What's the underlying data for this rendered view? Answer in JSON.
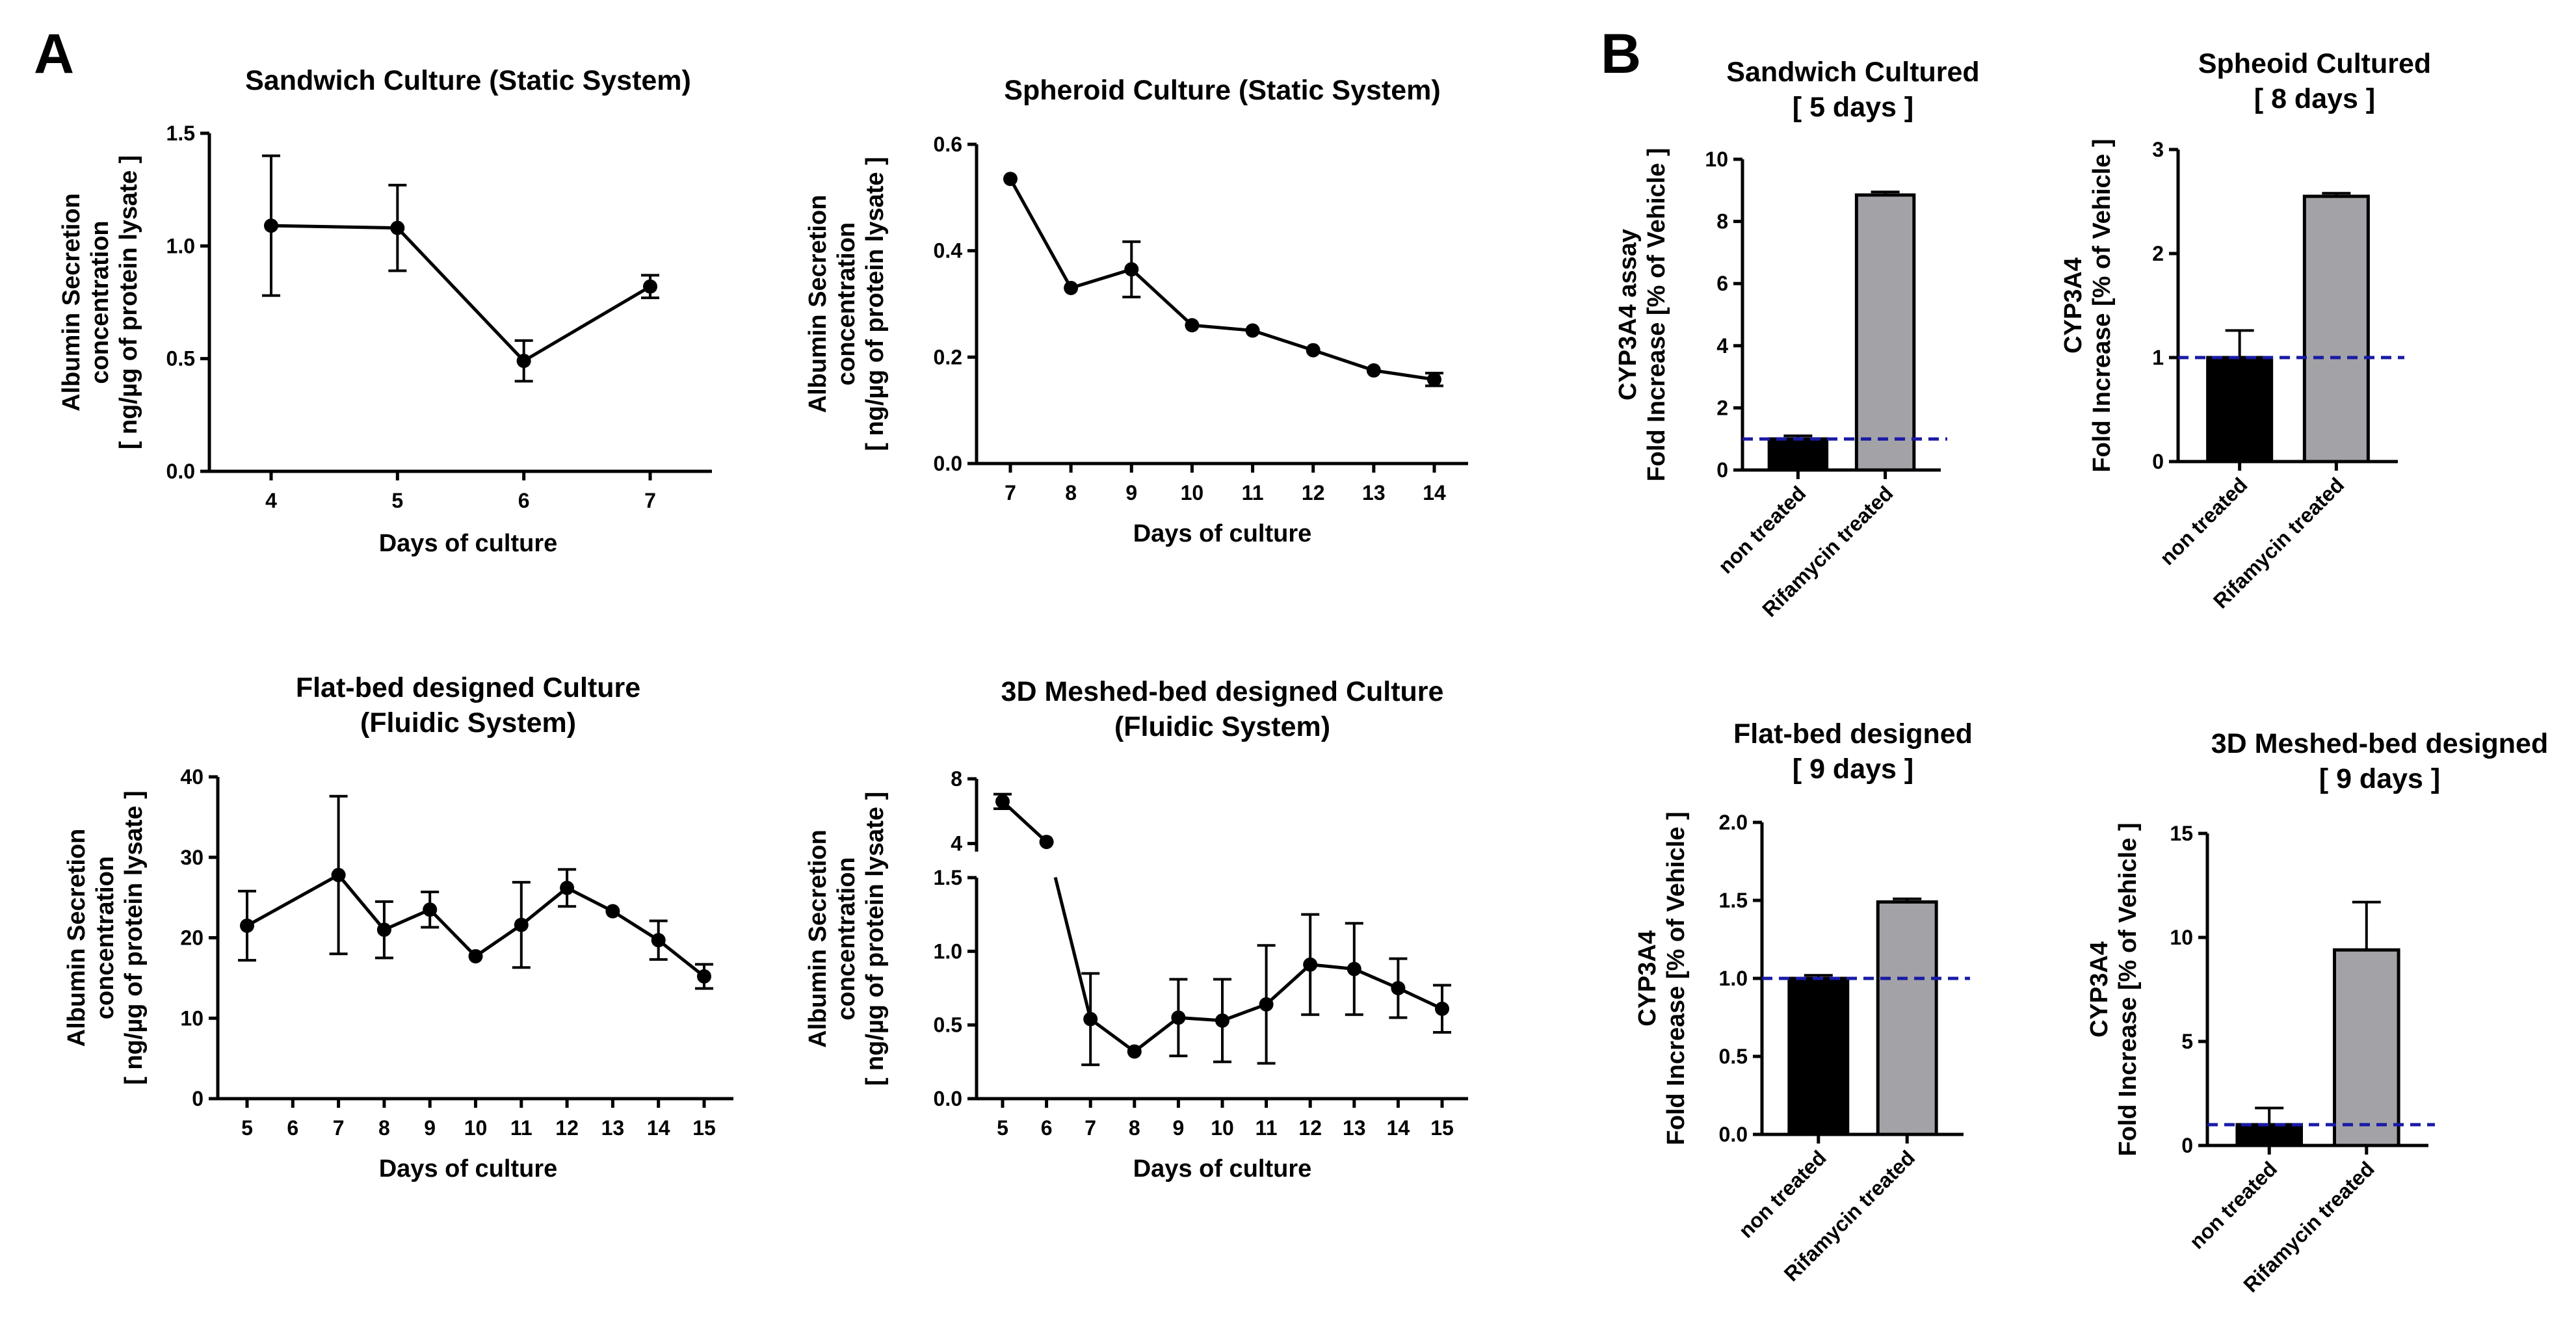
{
  "panels": {
    "A": "A",
    "B": "B"
  },
  "chart_data": [
    {
      "id": "a1",
      "type": "line",
      "title": [
        "Sandwich Culture (Static System)"
      ],
      "xlabel": "Days of culture",
      "ylabel": [
        "Albumin Secretion",
        "concentration",
        "[ ng/µg of protein lysate ]"
      ],
      "x": [
        4,
        5,
        6,
        7
      ],
      "y": [
        1.09,
        1.08,
        0.49,
        0.82
      ],
      "err": [
        0.31,
        0.19,
        0.09,
        0.05
      ],
      "xticks": [
        "4",
        "5",
        "6",
        "7"
      ],
      "yticks": [
        0.0,
        0.5,
        1.0,
        1.5
      ],
      "ytick_labels": [
        "0.0",
        "0.5",
        "1.0",
        "1.5"
      ],
      "ylim": [
        0,
        1.5
      ]
    },
    {
      "id": "a2",
      "type": "line",
      "title": [
        "Spheroid Culture (Static System)"
      ],
      "xlabel": "Days of culture",
      "ylabel": [
        "Albumin Secretion",
        "concentration",
        "[ ng/µg of protein lysate ]"
      ],
      "x": [
        7,
        8,
        9,
        10,
        11,
        12,
        13,
        14
      ],
      "y": [
        0.535,
        0.33,
        0.365,
        0.26,
        0.25,
        0.213,
        0.175,
        0.158
      ],
      "err": [
        0.0,
        0.0,
        0.052,
        0.0,
        0.0,
        0.0,
        0.0,
        0.012
      ],
      "xticks": [
        "7",
        "8",
        "9",
        "10",
        "11",
        "12",
        "13",
        "14"
      ],
      "yticks": [
        0.0,
        0.2,
        0.4,
        0.6
      ],
      "ytick_labels": [
        "0.0",
        "0.2",
        "0.4",
        "0.6"
      ],
      "ylim": [
        0,
        0.6
      ]
    },
    {
      "id": "a3",
      "type": "line",
      "title": [
        "Flat-bed designed Culture",
        "(Fluidic System)"
      ],
      "xlabel": "Days of culture",
      "ylabel": [
        "Albumin Secretion",
        "concentration",
        "[ ng/µg of protein lysate ]"
      ],
      "x": [
        5,
        7,
        8,
        9,
        10,
        11,
        12,
        13,
        14,
        15
      ],
      "y": [
        21.5,
        27.8,
        21.0,
        23.5,
        17.7,
        21.6,
        26.2,
        23.3,
        19.7,
        15.2
      ],
      "err": [
        4.3,
        9.8,
        3.5,
        2.2,
        0.0,
        5.3,
        2.3,
        0.0,
        2.4,
        1.5
      ],
      "xticks": [
        "5",
        "6",
        "7",
        "8",
        "9",
        "10",
        "11",
        "12",
        "13",
        "14",
        "15"
      ],
      "xtick_values": [
        5,
        6,
        7,
        8,
        9,
        10,
        11,
        12,
        13,
        14,
        15
      ],
      "yticks": [
        0,
        10,
        20,
        30,
        40
      ],
      "ytick_labels": [
        "0",
        "10",
        "20",
        "30",
        "40"
      ],
      "ylim": [
        0,
        40
      ]
    },
    {
      "id": "a4",
      "type": "line",
      "title": [
        "3D Meshed-bed designed Culture",
        "(Fluidic System)"
      ],
      "xlabel": "Days of culture",
      "ylabel": [
        "Albumin Secretion",
        "concentration",
        "[ ng/µg of protein lysate ]"
      ],
      "x": [
        5,
        6,
        7,
        8,
        9,
        10,
        11,
        12,
        13,
        14,
        15
      ],
      "y": [
        6.6,
        4.1,
        0.54,
        0.32,
        0.55,
        0.53,
        0.64,
        0.91,
        0.88,
        0.75,
        0.61
      ],
      "err": [
        0.45,
        0.0,
        0.31,
        0.0,
        0.26,
        0.28,
        0.4,
        0.34,
        0.31,
        0.2,
        0.16
      ],
      "xticks": [
        "5",
        "6",
        "7",
        "8",
        "9",
        "10",
        "11",
        "12",
        "13",
        "14",
        "15"
      ],
      "broken_axis": {
        "lower": [
          0,
          1.5
        ],
        "upper": [
          3.5,
          8
        ]
      },
      "yticks_lower": [
        0.0,
        0.5,
        1.0,
        1.5
      ],
      "ytick_labels_lower": [
        "0.0",
        "0.5",
        "1.0",
        "1.5"
      ],
      "yticks_upper": [
        4,
        8
      ],
      "ytick_labels_upper": [
        "4",
        "8"
      ]
    },
    {
      "id": "b1",
      "type": "bar",
      "title": [
        "Sandwich Cultured",
        "[ 5 days ]"
      ],
      "ylabel": [
        "CYP3A4 assay",
        "Fold Increase [% of Vehicle ]"
      ],
      "categories": [
        "non treated",
        "Rifamycin treated"
      ],
      "values": [
        1.0,
        8.85
      ],
      "err": [
        0.1,
        0.1
      ],
      "colors": [
        "#000000",
        "#a3a3a7"
      ],
      "reference_line": 1.0,
      "yticks": [
        0,
        2,
        4,
        6,
        8,
        10
      ],
      "ytick_labels": [
        "0",
        "2",
        "4",
        "6",
        "8",
        "10"
      ],
      "ylim": [
        0,
        10
      ]
    },
    {
      "id": "b2",
      "type": "bar",
      "title": [
        "Spheoid Cultured",
        "[ 8 days ]"
      ],
      "ylabel": [
        "CYP3A4",
        "Fold Increase [% of Vehicle ]"
      ],
      "categories": [
        "non treated",
        "Rifamycin treated"
      ],
      "values": [
        1.0,
        2.55
      ],
      "err": [
        0.26,
        0.03
      ],
      "colors": [
        "#000000",
        "#a3a3a7"
      ],
      "reference_line": 1.0,
      "yticks": [
        0,
        1,
        2,
        3
      ],
      "ytick_labels": [
        "0",
        "1",
        "2",
        "3"
      ],
      "ylim": [
        0,
        3
      ]
    },
    {
      "id": "b3",
      "type": "bar",
      "title": [
        "Flat-bed designed",
        "[ 9 days ]"
      ],
      "ylabel": [
        "CYP3A4",
        "Fold Increase [% of Vehicle ]"
      ],
      "categories": [
        "non treated",
        "Rifamycin treated"
      ],
      "values": [
        1.0,
        1.49
      ],
      "err": [
        0.02,
        0.02
      ],
      "colors": [
        "#000000",
        "#a3a3a7"
      ],
      "reference_line": 1.0,
      "yticks": [
        0.0,
        0.5,
        1.0,
        1.5,
        2.0
      ],
      "ytick_labels": [
        "0.0",
        "0.5",
        "1.0",
        "1.5",
        "2.0"
      ],
      "ylim": [
        0,
        2
      ]
    },
    {
      "id": "b4",
      "type": "bar",
      "title": [
        "3D Meshed-bed designed",
        "[ 9 days ]"
      ],
      "ylabel": [
        "CYP3A4",
        "Fold Increase [% of Vehicle ]"
      ],
      "categories": [
        "non treated",
        "Rifamycin treated"
      ],
      "values": [
        1.0,
        9.4
      ],
      "err": [
        0.8,
        2.3
      ],
      "colors": [
        "#000000",
        "#a3a3a7"
      ],
      "reference_line": 1.0,
      "yticks": [
        0,
        5,
        10,
        15
      ],
      "ytick_labels": [
        "0",
        "5",
        "10",
        "15"
      ],
      "ylim": [
        0,
        15
      ]
    }
  ]
}
